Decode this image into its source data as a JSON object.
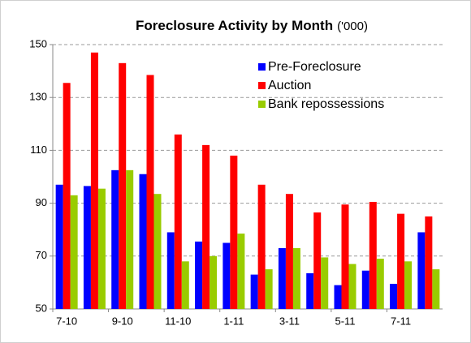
{
  "chart_data": {
    "type": "bar",
    "title": "Foreclosure Activity by Month",
    "subtitle": "('000)",
    "categories": [
      "7-10",
      null,
      "9-10",
      null,
      "11-10",
      null,
      "1-11",
      null,
      "3-11",
      null,
      "5-11",
      null,
      "7-11",
      null
    ],
    "series": [
      {
        "name": "Pre-Foreclosure",
        "color": "#0000ff",
        "values": [
          97,
          96.5,
          102.5,
          101,
          79,
          75.5,
          75,
          63,
          73,
          63.5,
          59,
          64.5,
          59.5,
          79
        ]
      },
      {
        "name": "Auction",
        "color": "#ff0000",
        "values": [
          135.5,
          147,
          143,
          138.5,
          116,
          112,
          108,
          97,
          93.5,
          86.5,
          89.5,
          90.5,
          86,
          85
        ]
      },
      {
        "name": "Bank repossessions",
        "color": "#99cc00",
        "values": [
          93,
          95.5,
          102.5,
          93.5,
          68,
          70,
          78.5,
          65,
          73,
          69.5,
          67,
          69,
          68,
          65
        ]
      }
    ],
    "ylim": [
      50,
      150
    ],
    "yticks": [
      50,
      70,
      90,
      110,
      130,
      150
    ],
    "grid": true,
    "legend": "upper right"
  }
}
